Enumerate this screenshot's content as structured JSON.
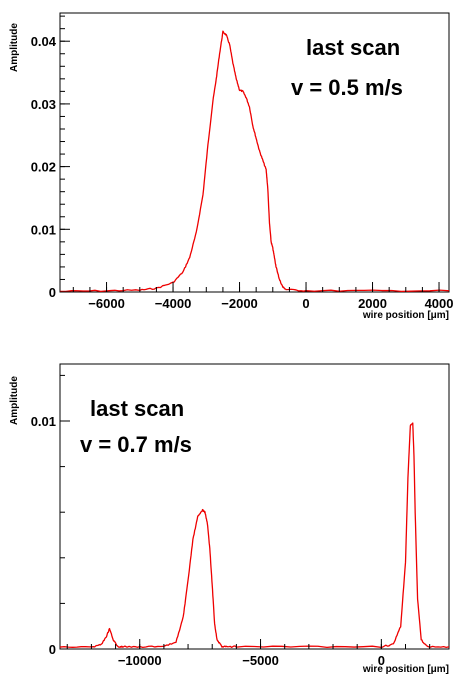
{
  "chart_data": [
    {
      "type": "line",
      "title": "",
      "xlabel": "wire position [μm]",
      "ylabel": "Amplitude",
      "xlim": [
        -7400,
        4300
      ],
      "ylim": [
        0,
        0.0445
      ],
      "xticks": [
        -6000,
        -4000,
        -2000,
        0,
        2000,
        4000
      ],
      "xtick_labels": [
        "−6000",
        "−4000",
        "−2000",
        "0",
        "2000",
        "4000"
      ],
      "yticks": [
        0,
        0.01,
        0.02,
        0.03,
        0.04
      ],
      "ytick_labels": [
        "0",
        "0.01",
        "0.02",
        "0.03",
        "0.04"
      ],
      "grid": false,
      "annotations": [
        "last scan",
        "v = 0.5 m/s"
      ],
      "series": [
        {
          "color": "#ee0000",
          "x": [
            -7400,
            -6000,
            -5000,
            -4500,
            -4000,
            -3700,
            -3500,
            -3300,
            -3100,
            -2950,
            -2800,
            -2700,
            -2600,
            -2500,
            -2400,
            -2300,
            -2200,
            -2100,
            -2000,
            -1900,
            -1800,
            -1700,
            -1600,
            -1500,
            -1400,
            -1300,
            -1200,
            -1150,
            -1100,
            -1050,
            -1000,
            -950,
            -900,
            -850,
            -800,
            -700,
            -600,
            0,
            2000,
            4300
          ],
          "y": [
            0.0001,
            0.0002,
            0.0003,
            0.0006,
            0.0015,
            0.0032,
            0.0055,
            0.0095,
            0.0155,
            0.0235,
            0.0305,
            0.034,
            0.038,
            0.0415,
            0.041,
            0.0395,
            0.0365,
            0.034,
            0.0322,
            0.032,
            0.031,
            0.0295,
            0.0265,
            0.0245,
            0.0225,
            0.021,
            0.0195,
            0.0165,
            0.011,
            0.008,
            0.007,
            0.0055,
            0.004,
            0.003,
            0.002,
            0.0008,
            0.0004,
            0.0002,
            0.0002,
            0.0002
          ]
        }
      ]
    },
    {
      "type": "line",
      "title": "",
      "xlabel": "wire position [μm]",
      "ylabel": "Amplitude",
      "xlim": [
        -13300,
        2800
      ],
      "ylim": [
        0,
        0.0125
      ],
      "xticks": [
        -10000,
        -5000,
        0
      ],
      "xtick_labels": [
        "−10000",
        "−5000",
        "0"
      ],
      "yticks": [
        0,
        0.01
      ],
      "ytick_labels": [
        "0",
        "0.01"
      ],
      "grid": false,
      "annotations": [
        "last scan",
        "v = 0.7 m/s"
      ],
      "series": [
        {
          "color": "#ee0000",
          "x": [
            -13300,
            -11900,
            -11600,
            -11400,
            -11250,
            -11100,
            -10900,
            -10700,
            -10000,
            -9000,
            -8500,
            -8200,
            -8000,
            -7800,
            -7600,
            -7400,
            -7300,
            -7200,
            -7100,
            -7000,
            -6900,
            -6800,
            -6600,
            -6400,
            -6000,
            -3000,
            0,
            500,
            800,
            1000,
            1100,
            1200,
            1300,
            1350,
            1400,
            1500,
            1650,
            1900,
            2800
          ],
          "y": [
            0.0001,
            0.0001,
            0.0002,
            0.0005,
            0.0009,
            0.0004,
            0.0001,
            0.0001,
            0.0001,
            0.0001,
            0.0003,
            0.0014,
            0.003,
            0.0048,
            0.0058,
            0.0061,
            0.006,
            0.0055,
            0.0044,
            0.0028,
            0.0011,
            0.0004,
            0.0001,
            0.0001,
            0.0001,
            0.0001,
            0.0001,
            0.0002,
            0.001,
            0.0038,
            0.0075,
            0.0098,
            0.0099,
            0.0085,
            0.006,
            0.0022,
            0.0004,
            0.0001,
            0.0001
          ]
        }
      ]
    }
  ]
}
